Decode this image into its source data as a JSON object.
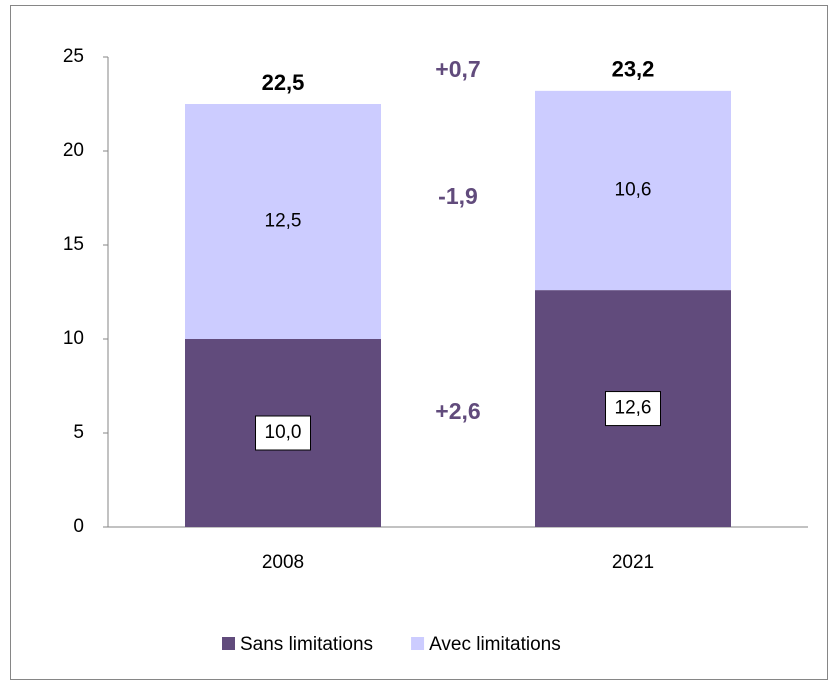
{
  "chart_data": {
    "type": "stacked-bar",
    "categories": [
      "2008",
      "2021"
    ],
    "series": [
      {
        "name": "Sans limitations",
        "color": "#614b7c",
        "values": [
          10.0,
          12.6
        ],
        "value_labels": [
          "10,0",
          "12,6"
        ]
      },
      {
        "name": "Avec limitations",
        "color": "#ccccff",
        "values": [
          12.5,
          10.6
        ],
        "value_labels": [
          "12,5",
          "10,6"
        ]
      }
    ],
    "total_labels": [
      "22,5",
      "23,2"
    ],
    "annotations": [
      "+2,6",
      "-1,9",
      "+0,7"
    ],
    "ylim": [
      0,
      25
    ],
    "yticks": [
      0,
      5,
      10,
      15,
      20,
      25
    ],
    "grid": false,
    "legend": "bottom"
  }
}
